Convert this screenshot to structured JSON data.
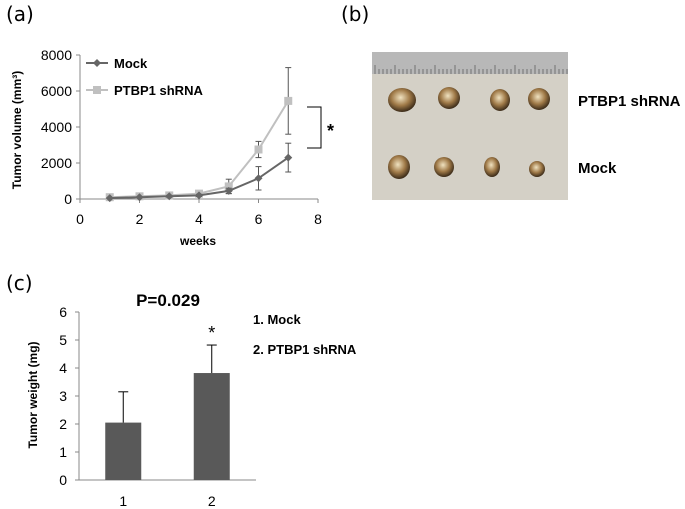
{
  "panels": {
    "a": "(a)",
    "b": "(b)",
    "c": "(c)"
  },
  "colors": {
    "mock": "#666666",
    "shrna": "#c0c0c0",
    "bar": "#595959",
    "ruler": "#b8b8b8",
    "tray": "#d4d0c6"
  },
  "photo": {
    "label_shrna": "PTBP1 shRNA",
    "label_mock": "Mock",
    "row_count_top": 4,
    "row_count_bottom": 4
  },
  "chart_data": [
    {
      "type": "line",
      "xlabel": "weeks",
      "ylabel": "Tumor volume (mm³)",
      "xlim": [
        0,
        8
      ],
      "ylim": [
        0,
        8000
      ],
      "x_ticks": [
        "0",
        "2",
        "4",
        "6",
        "8"
      ],
      "y_ticks": [
        "0",
        "2000",
        "4000",
        "6000",
        "8000"
      ],
      "legend_position": "top-left",
      "significance": "*",
      "series": [
        {
          "name": "Mock",
          "color": "#666666",
          "marker": "diamond",
          "x": [
            1,
            2,
            3,
            4,
            5,
            6,
            7
          ],
          "y": [
            50,
            100,
            150,
            200,
            450,
            1150,
            2300
          ],
          "err": [
            20,
            30,
            50,
            60,
            150,
            650,
            800
          ]
        },
        {
          "name": "PTBP1 shRNA",
          "color": "#c0c0c0",
          "marker": "square",
          "x": [
            1,
            2,
            3,
            4,
            5,
            6,
            7
          ],
          "y": [
            100,
            150,
            200,
            300,
            700,
            2750,
            5450
          ],
          "err": [
            30,
            40,
            60,
            80,
            400,
            450,
            1850
          ]
        }
      ]
    },
    {
      "type": "bar",
      "title": "P=0.029",
      "ylabel": "Tumor weight (mg)",
      "categories": [
        "1",
        "2"
      ],
      "values": [
        2.05,
        3.82
      ],
      "err": [
        1.1,
        1.0
      ],
      "ylim": [
        0,
        6
      ],
      "y_ticks": [
        "0",
        "1",
        "2",
        "3",
        "4",
        "5",
        "6"
      ],
      "significance": [
        "",
        "*"
      ],
      "legend_entries": [
        "1. Mock",
        "2. PTBP1 shRNA"
      ]
    }
  ]
}
